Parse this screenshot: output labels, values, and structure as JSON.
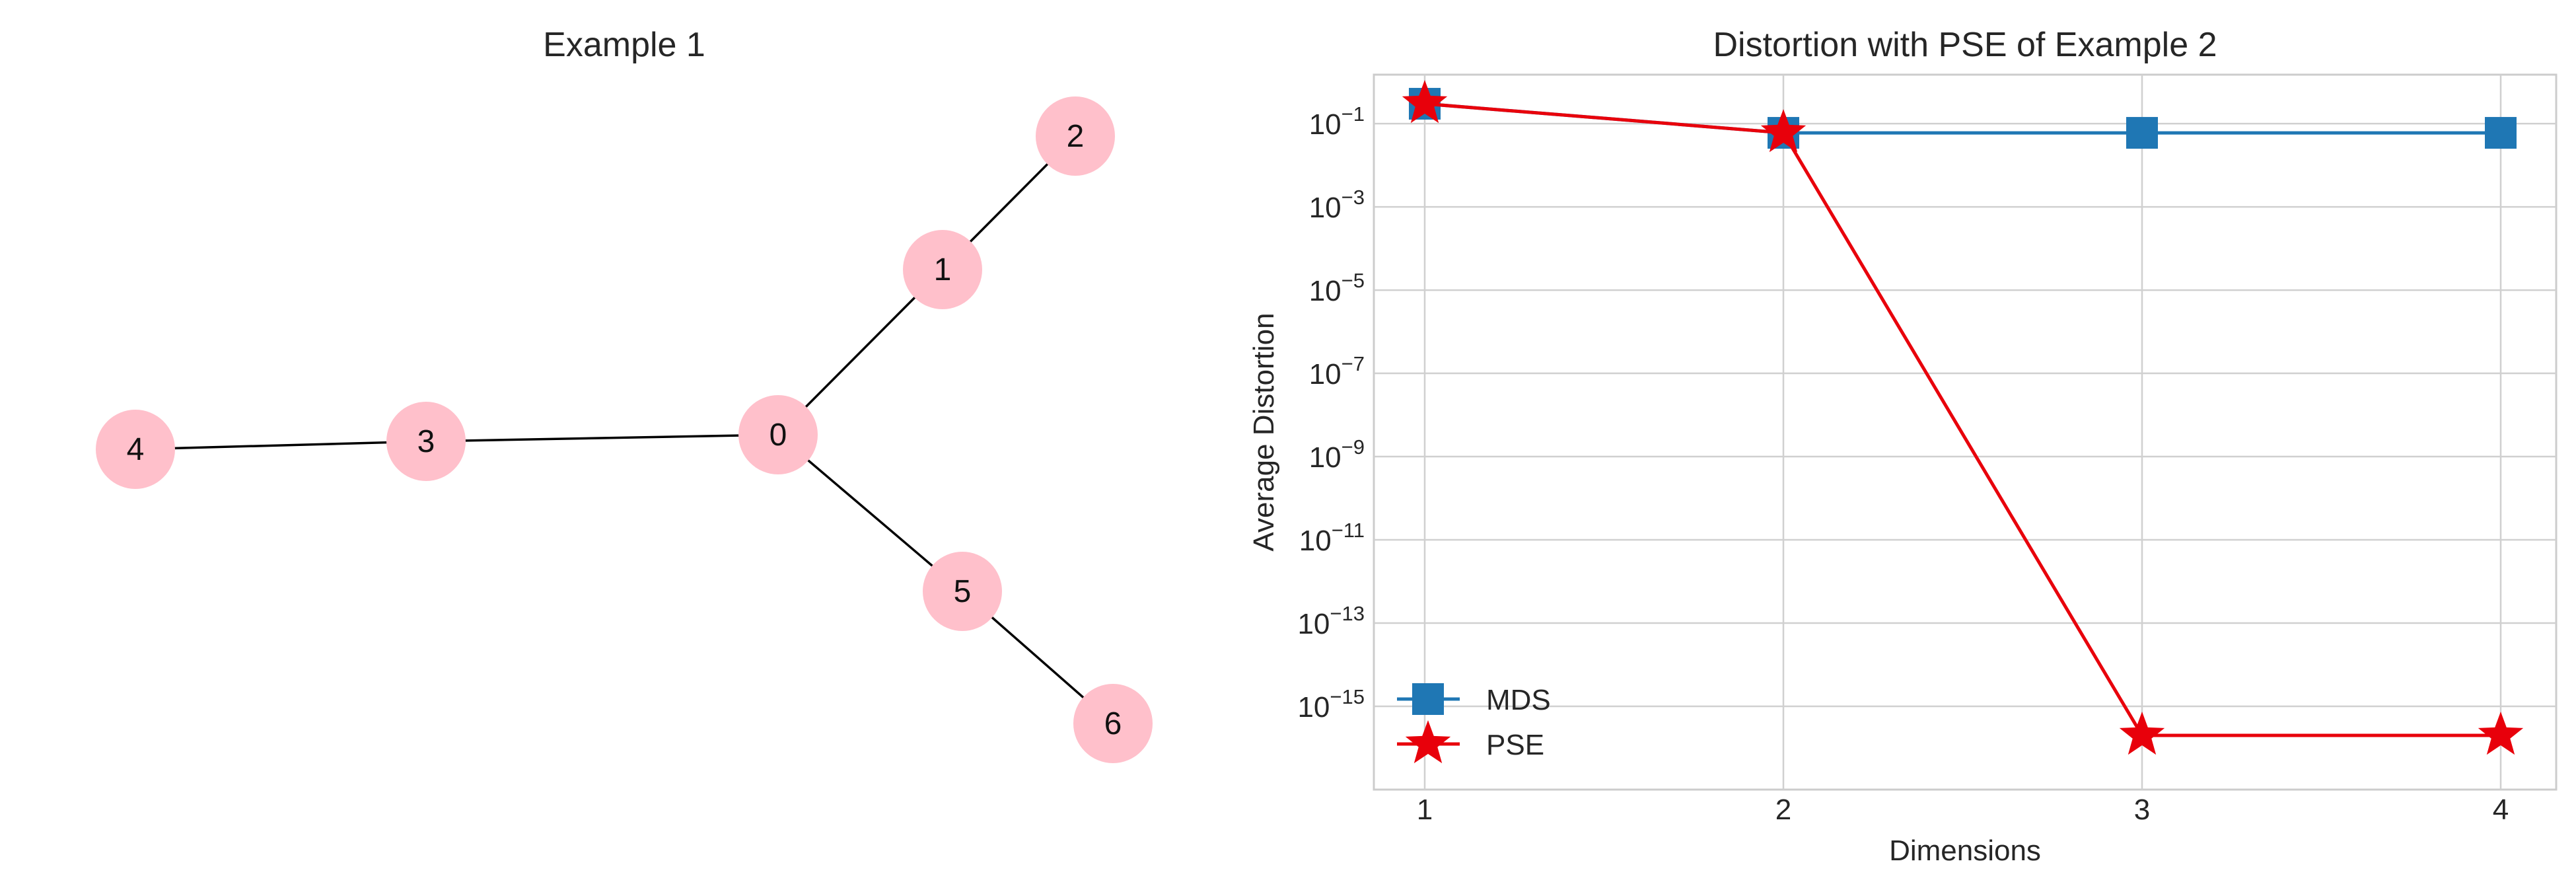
{
  "chart_data": [
    {
      "type": "network",
      "title": "Example 1",
      "nodes": [
        "0",
        "1",
        "2",
        "3",
        "4",
        "5",
        "6"
      ],
      "edges": [
        [
          "0",
          "1"
        ],
        [
          "1",
          "2"
        ],
        [
          "0",
          "3"
        ],
        [
          "3",
          "4"
        ],
        [
          "0",
          "5"
        ],
        [
          "5",
          "6"
        ]
      ],
      "node_color": "#ffc0cb",
      "edge_color": "#000000"
    },
    {
      "type": "line",
      "title": "Distortion with PSE of Example 2",
      "xlabel": "Dimensions",
      "ylabel": "Average Distortion",
      "x": [
        1,
        2,
        3,
        4
      ],
      "xticks": [
        "1",
        "2",
        "3",
        "4"
      ],
      "yscale": "log",
      "ylim": [
        1e-17,
        1.5
      ],
      "yticks": [
        {
          "value": 1e-15,
          "base": "10",
          "exp": "−15"
        },
        {
          "value": 1e-13,
          "base": "10",
          "exp": "−13"
        },
        {
          "value": 1e-11,
          "base": "10",
          "exp": "−11"
        },
        {
          "value": 1e-09,
          "base": "10",
          "exp": "−9"
        },
        {
          "value": 1e-07,
          "base": "10",
          "exp": "−7"
        },
        {
          "value": 1e-05,
          "base": "10",
          "exp": "−5"
        },
        {
          "value": 0.001,
          "base": "10",
          "exp": "−3"
        },
        {
          "value": 0.1,
          "base": "10",
          "exp": "−1"
        }
      ],
      "grid": true,
      "legend": "lower-left",
      "series": [
        {
          "name": "MDS",
          "marker": "square",
          "color": "#1f77b4",
          "values": [
            0.3,
            0.06,
            0.06,
            0.06
          ]
        },
        {
          "name": "PSE",
          "marker": "star",
          "color": "#e8000b",
          "values": [
            0.3,
            0.06,
            2e-16,
            2e-16
          ]
        }
      ]
    }
  ]
}
